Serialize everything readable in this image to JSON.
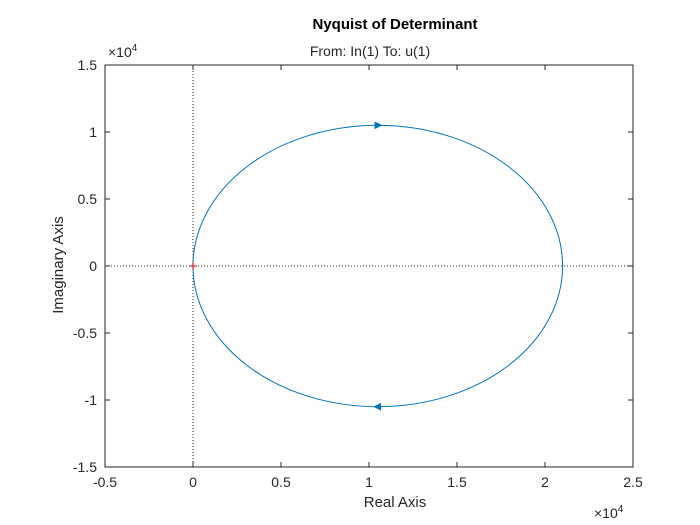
{
  "chart_data": {
    "type": "line",
    "title": "Nyquist of Determinant",
    "subtitle": "From: In(1)  To: u(1)",
    "xlabel": "Real Axis",
    "ylabel": "Imaginary Axis",
    "x_exponent": "×10",
    "x_exponent_power": "4",
    "y_exponent": "×10",
    "y_exponent_power": "4",
    "xlim": [
      -5000,
      25000
    ],
    "ylim": [
      -15000,
      15000
    ],
    "xticks": [
      -5000,
      0,
      5000,
      10000,
      15000,
      20000,
      25000
    ],
    "xtick_labels": [
      "-0.5",
      "0",
      "0.5",
      "1",
      "1.5",
      "2",
      "2.5"
    ],
    "yticks": [
      -15000,
      -10000,
      -5000,
      0,
      5000,
      10000,
      15000
    ],
    "ytick_labels": [
      "-1.5",
      "-1",
      "-0.5",
      "0",
      "0.5",
      "1",
      "1.5"
    ],
    "series": [
      {
        "curve": "circle",
        "center": [
          10500,
          0
        ],
        "radius": 10500,
        "color": "#0072BD",
        "direction_arrows": [
          {
            "x": 10500,
            "y": 10500,
            "direction": "right"
          },
          {
            "x": 10500,
            "y": -10500,
            "direction": "left"
          }
        ]
      }
    ],
    "critical_point": {
      "x": 0,
      "y": 0,
      "color": "#d62728",
      "marker": "plus"
    },
    "reference_lines": {
      "x": 0,
      "y": 0,
      "style": "dotted"
    },
    "grid": false
  }
}
